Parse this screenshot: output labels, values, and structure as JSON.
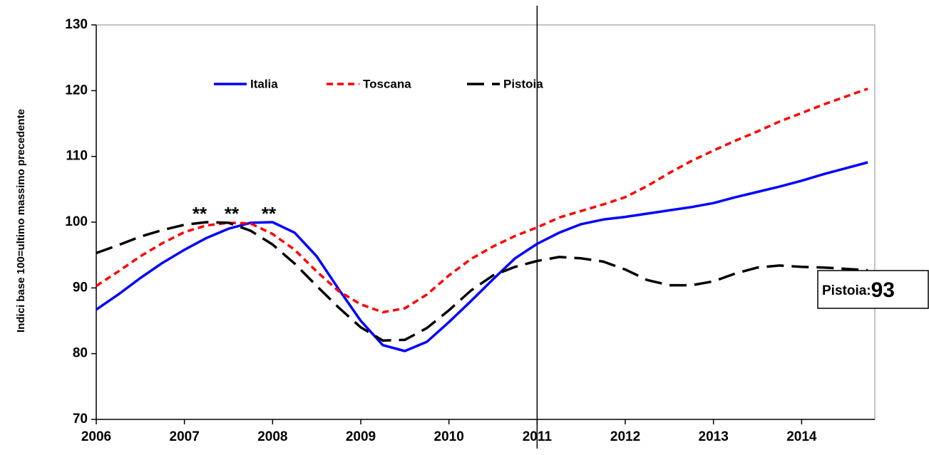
{
  "chart_data": {
    "type": "line",
    "y_label": "Indici base 100=ultimo massimo precedente",
    "x": [
      2006,
      2006.25,
      2006.5,
      2006.75,
      2007,
      2007.25,
      2007.5,
      2007.75,
      2008,
      2008.25,
      2008.5,
      2008.75,
      2009,
      2009.25,
      2009.5,
      2009.75,
      2010,
      2010.25,
      2010.5,
      2010.75,
      2011,
      2011.25,
      2011.5,
      2011.75,
      2012,
      2012.25,
      2012.5,
      2012.75,
      2013,
      2013.25,
      2013.5,
      2013.75,
      2014,
      2014.25,
      2014.5,
      2014.75
    ],
    "series": [
      {
        "name": "Italia",
        "color": "#0000ff",
        "values": [
          86.7,
          89,
          91.5,
          93.8,
          95.8,
          97.6,
          99,
          99.9,
          100,
          98.4,
          94.8,
          89.8,
          85,
          81.3,
          80.4,
          81.8,
          84.8,
          88,
          91.3,
          94.5,
          96.7,
          98.4,
          99.7,
          100.4,
          100.8,
          101.3,
          101.8,
          102.3,
          102.9,
          103.8,
          104.6,
          105.4,
          106.3,
          107.3,
          108.2,
          109.1
        ]
      },
      {
        "name": "Toscana",
        "color": "#ff0000",
        "values": [
          90.3,
          92.5,
          94.8,
          96.8,
          98.5,
          99.5,
          99.9,
          99.8,
          98.2,
          95.8,
          92.5,
          89.5,
          87.5,
          86.3,
          86.9,
          89,
          91.9,
          94.4,
          96.3,
          97.9,
          99.2,
          100.7,
          101.7,
          102.7,
          103.8,
          105.5,
          107.5,
          109.3,
          110.9,
          112.4,
          113.8,
          115.3,
          116.6,
          117.9,
          119.1,
          120.3
        ]
      },
      {
        "name": "Pistoia",
        "color": "#000000",
        "values": [
          95.3,
          96.5,
          97.8,
          98.8,
          99.6,
          100,
          99.9,
          98.7,
          96.6,
          93.7,
          90.3,
          87,
          84,
          82,
          82.1,
          83.9,
          86.6,
          89.6,
          91.9,
          93.2,
          94.1,
          94.7,
          94.5,
          94,
          92.8,
          91.2,
          90.4,
          90.4,
          91,
          92.2,
          93.1,
          93.4,
          93.2,
          93.1,
          92.9,
          92.7
        ]
      }
    ],
    "xlim": [
      2006,
      2014.83
    ],
    "xticks": [
      2006,
      2007,
      2008,
      2009,
      2010,
      2011,
      2012,
      2013,
      2014
    ],
    "ylim": [
      70,
      130
    ],
    "yticks": [
      70,
      80,
      90,
      100,
      110,
      120,
      130
    ],
    "reference_line": 2011,
    "annotations": [
      "**",
      "**",
      "**"
    ],
    "end_label": {
      "label": "Pistoia:",
      "value": 93
    }
  }
}
